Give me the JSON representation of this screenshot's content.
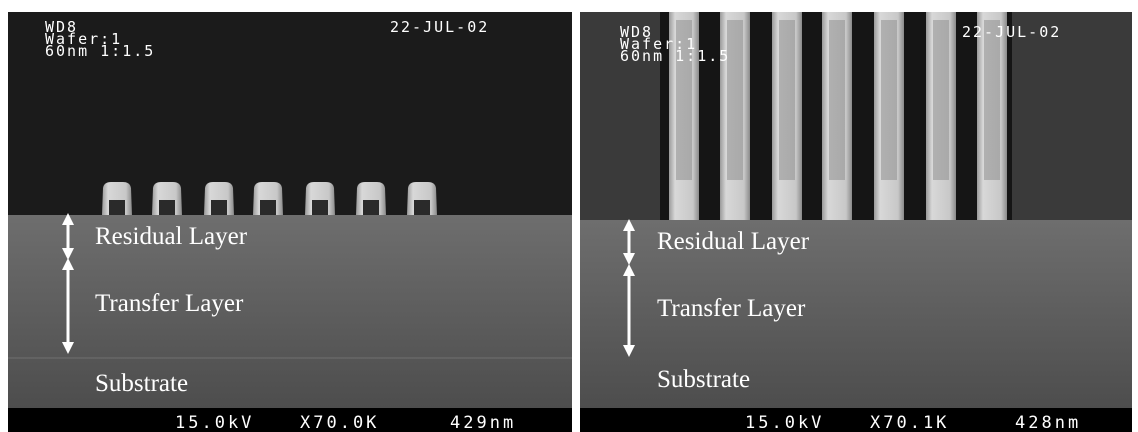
{
  "panels": [
    {
      "info": [
        "WD8",
        "Wafer:1",
        "60nm 1:1.5"
      ],
      "date": "22-JUL-02",
      "labels": [
        "Residual Layer",
        "Transfer Layer",
        "Substrate"
      ],
      "footer": [
        "15.0kV",
        "X70.0K",
        "429nm"
      ]
    },
    {
      "info": [
        "WD8",
        "Wafer:1",
        "60nm 1:1.5"
      ],
      "date": "22-JUL-02",
      "labels": [
        "Residual Layer",
        "Transfer Layer",
        "Substrate"
      ],
      "footer": [
        "15.0kV",
        "X70.1K",
        "428nm"
      ]
    }
  ]
}
